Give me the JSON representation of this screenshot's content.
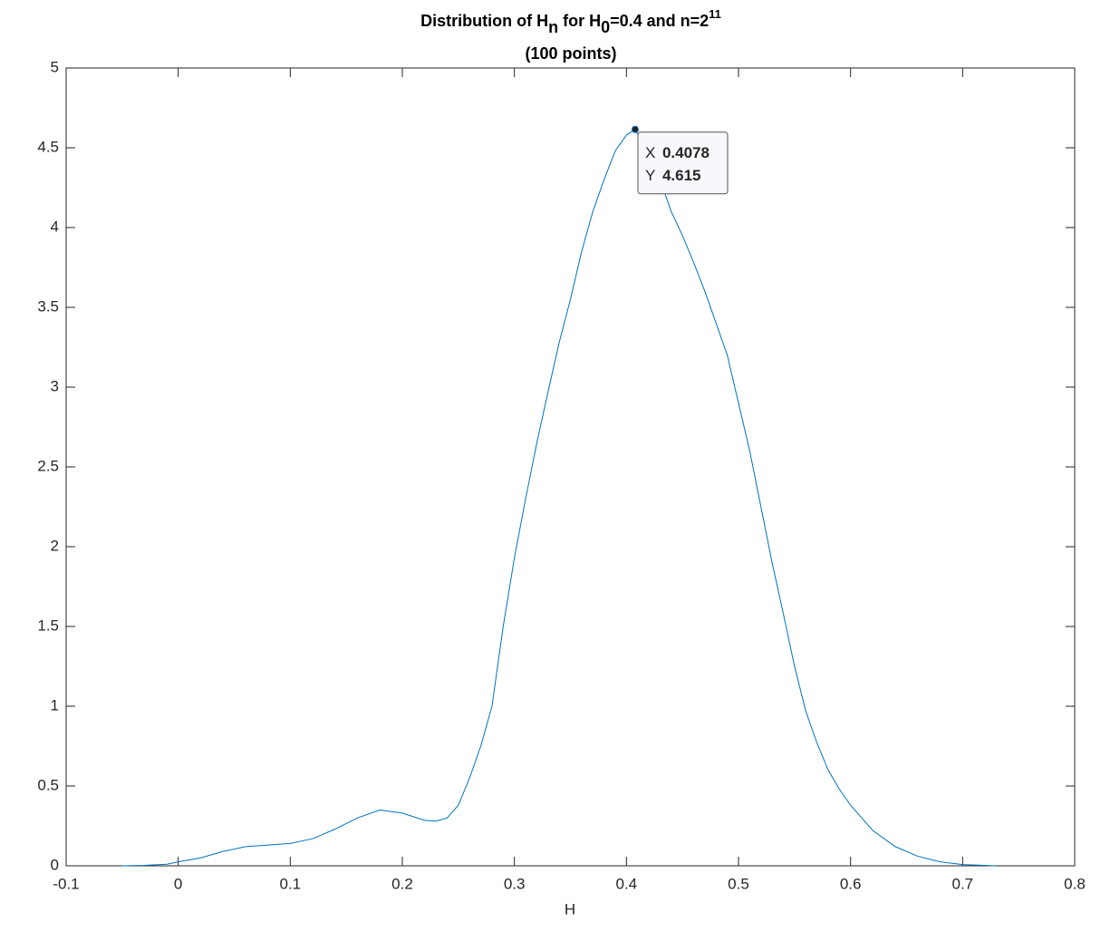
{
  "chart_data": {
    "type": "line",
    "title": [
      "Distribution of H",
      "n",
      " for H",
      "0",
      "=0.4 and n=2",
      "11"
    ],
    "subtitle": "(100 points)",
    "x_label": "H",
    "x": [
      -0.05,
      -0.03,
      -0.01,
      0,
      0.02,
      0.04,
      0.06,
      0.08,
      0.1,
      0.12,
      0.14,
      0.16,
      0.18,
      0.2,
      0.22,
      0.23,
      0.24,
      0.25,
      0.26,
      0.27,
      0.28,
      0.29,
      0.3,
      0.31,
      0.32,
      0.33,
      0.34,
      0.35,
      0.36,
      0.37,
      0.38,
      0.39,
      0.4,
      0.4078,
      0.42,
      0.43,
      0.44,
      0.45,
      0.46,
      0.47,
      0.48,
      0.49,
      0.5,
      0.51,
      0.52,
      0.53,
      0.54,
      0.55,
      0.56,
      0.57,
      0.58,
      0.59,
      0.6,
      0.62,
      0.64,
      0.66,
      0.68,
      0.7,
      0.73
    ],
    "series": [
      {
        "color": "#0072bd",
        "values": [
          0,
          0.003,
          0.01,
          0.025,
          0.05,
          0.09,
          0.12,
          0.13,
          0.14,
          0.17,
          0.23,
          0.3,
          0.35,
          0.33,
          0.285,
          0.28,
          0.3,
          0.38,
          0.55,
          0.75,
          1.0,
          1.5,
          1.93,
          2.3,
          2.65,
          2.97,
          3.28,
          3.55,
          3.85,
          4.1,
          4.3,
          4.48,
          4.58,
          4.615,
          4.45,
          4.3,
          4.1,
          3.95,
          3.78,
          3.6,
          3.4,
          3.2,
          2.9,
          2.6,
          2.25,
          1.9,
          1.58,
          1.25,
          0.97,
          0.77,
          0.6,
          0.48,
          0.38,
          0.22,
          0.12,
          0.06,
          0.025,
          0.008,
          0
        ]
      }
    ],
    "xlim": [
      -0.1,
      0.8
    ],
    "xticks": [
      -0.1,
      0,
      0.1,
      0.2,
      0.3,
      0.4,
      0.5,
      0.6,
      0.7,
      0.8
    ],
    "ylim": [
      0,
      5
    ],
    "yticks": [
      0,
      0.5,
      1,
      1.5,
      2,
      2.5,
      3,
      3.5,
      4,
      4.5,
      5
    ],
    "grid": false,
    "datatip": {
      "x_label": "X",
      "x": 0.4078,
      "y_label": "Y",
      "y": 4.615,
      "color": "#0a8ee8"
    }
  }
}
